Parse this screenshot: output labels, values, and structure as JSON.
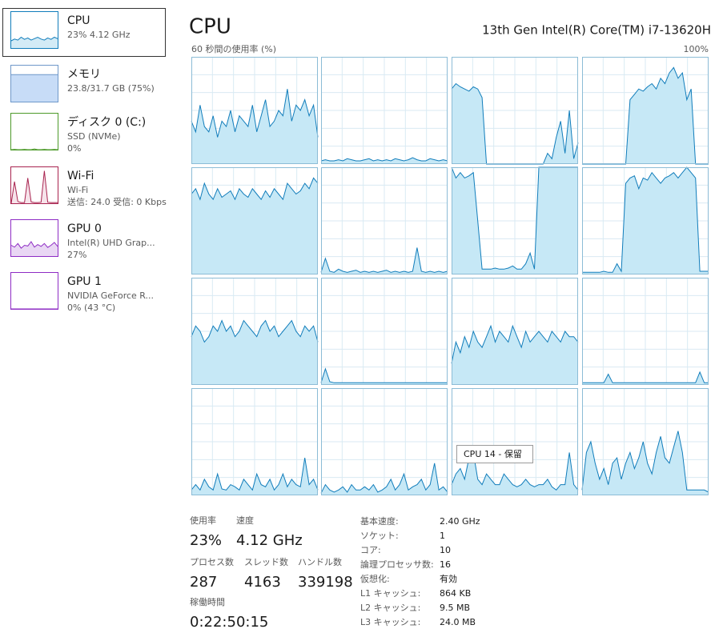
{
  "sidebar": [
    {
      "title": "CPU",
      "lines": [
        "23%  4.12 GHz"
      ],
      "color": "#117dbb",
      "fill": "#d3ebf6",
      "values": [
        20,
        25,
        22,
        30,
        24,
        28,
        22,
        26,
        30,
        25,
        22,
        28,
        24,
        30,
        26
      ]
    },
    {
      "title": "メモリ",
      "lines": [
        "23.8/31.7 GB (75%)"
      ],
      "color": "#6f98c9",
      "fill": "#c7dcf7",
      "values": [
        75,
        75,
        75,
        75,
        75,
        75,
        75,
        75,
        75,
        75,
        75,
        75,
        75,
        75,
        75
      ]
    },
    {
      "title": "ディスク 0 (C:)",
      "lines": [
        "SSD (NVMe)",
        "0%"
      ],
      "color": "#4d9a2a",
      "fill": "#eef6ea",
      "values": [
        0,
        1,
        0,
        0,
        1,
        0,
        0,
        2,
        0,
        0,
        1,
        0,
        0,
        1,
        0
      ]
    },
    {
      "title": "Wi-Fi",
      "lines": [
        "Wi-Fi",
        "送信: 24.0 受信: 0 Kbps"
      ],
      "color": "#a8234f",
      "fill": "#f6e3ea",
      "values": [
        0,
        60,
        5,
        2,
        2,
        70,
        4,
        2,
        2,
        3,
        90,
        3,
        2,
        2,
        2
      ]
    },
    {
      "title": "GPU 0",
      "lines": [
        "Intel(R) UHD Grap...",
        "27%"
      ],
      "color": "#8e2cc4",
      "fill": "#e9d7f4",
      "values": [
        30,
        25,
        35,
        22,
        30,
        28,
        40,
        25,
        32,
        27,
        35,
        24,
        30,
        38,
        27
      ]
    },
    {
      "title": "GPU 1",
      "lines": [
        "NVIDIA GeForce R...",
        "0% (43 °C)"
      ],
      "color": "#8e2cc4",
      "fill": "#e9d7f4",
      "values": [
        0,
        0,
        0,
        0,
        0,
        0,
        0,
        0,
        0,
        0,
        0,
        0,
        0,
        0,
        0
      ]
    }
  ],
  "header": {
    "title": "CPU",
    "model": "13th Gen Intel(R) Core(TM) i7-13620H",
    "graph_label": "60 秒間の使用率 (%)",
    "graph_max": "100%"
  },
  "cores": [
    {
      "values": [
        40,
        30,
        55,
        35,
        30,
        45,
        25,
        40,
        35,
        50,
        30,
        45,
        40,
        35,
        55,
        30,
        45,
        60,
        35,
        40,
        50,
        45,
        70,
        40,
        55,
        50,
        60,
        45,
        55,
        25
      ]
    },
    {
      "values": [
        3,
        4,
        3,
        3,
        4,
        3,
        5,
        4,
        3,
        3,
        4,
        5,
        3,
        4,
        3,
        4,
        3,
        5,
        4,
        3,
        4,
        6,
        4,
        3,
        3,
        5,
        4,
        3,
        4,
        3
      ]
    },
    {
      "values": [
        70,
        75,
        72,
        70,
        68,
        72,
        70,
        62,
        0,
        0,
        0,
        0,
        0,
        0,
        0,
        0,
        0,
        0,
        0,
        0,
        0,
        0,
        10,
        5,
        25,
        40,
        10,
        50,
        5,
        20
      ]
    },
    {
      "values": [
        0,
        0,
        0,
        0,
        0,
        0,
        0,
        0,
        0,
        0,
        0,
        60,
        65,
        70,
        68,
        72,
        75,
        70,
        80,
        75,
        85,
        90,
        80,
        85,
        60,
        70,
        0,
        0,
        0,
        0
      ]
    },
    {
      "values": [
        75,
        80,
        70,
        85,
        75,
        70,
        80,
        72,
        75,
        78,
        70,
        80,
        75,
        72,
        80,
        75,
        70,
        78,
        72,
        80,
        75,
        70,
        85,
        80,
        75,
        78,
        85,
        80,
        90,
        85
      ]
    },
    {
      "values": [
        2,
        15,
        3,
        2,
        5,
        3,
        2,
        3,
        4,
        2,
        3,
        2,
        3,
        2,
        3,
        4,
        2,
        3,
        2,
        3,
        2,
        3,
        25,
        3,
        2,
        3,
        2,
        3,
        2,
        3
      ]
    },
    {
      "values": [
        100,
        90,
        95,
        90,
        92,
        95,
        50,
        5,
        5,
        5,
        6,
        5,
        5,
        6,
        8,
        5,
        5,
        10,
        20,
        5,
        100,
        100,
        100,
        100,
        100,
        100,
        100,
        100,
        100,
        100
      ]
    },
    {
      "values": [
        2,
        2,
        2,
        2,
        2,
        3,
        2,
        2,
        10,
        3,
        85,
        90,
        92,
        80,
        90,
        88,
        95,
        90,
        85,
        90,
        92,
        95,
        90,
        95,
        100,
        95,
        90,
        3,
        3,
        3
      ]
    },
    {
      "values": [
        45,
        55,
        50,
        40,
        45,
        55,
        50,
        60,
        50,
        55,
        45,
        50,
        60,
        55,
        50,
        45,
        55,
        60,
        50,
        55,
        45,
        50,
        55,
        60,
        50,
        45,
        55,
        50,
        55,
        40
      ]
    },
    {
      "values": [
        2,
        15,
        3,
        2,
        2,
        2,
        2,
        2,
        2,
        2,
        2,
        2,
        2,
        2,
        2,
        2,
        2,
        2,
        2,
        2,
        2,
        2,
        2,
        2,
        2,
        2,
        2,
        2,
        2,
        2
      ]
    },
    {
      "values": [
        20,
        40,
        30,
        45,
        35,
        50,
        40,
        35,
        45,
        55,
        40,
        50,
        45,
        40,
        55,
        45,
        35,
        50,
        40,
        45,
        50,
        45,
        40,
        50,
        45,
        40,
        50,
        45,
        45,
        40
      ]
    },
    {
      "values": [
        2,
        2,
        2,
        2,
        2,
        2,
        10,
        2,
        2,
        2,
        2,
        2,
        2,
        2,
        2,
        2,
        2,
        2,
        2,
        2,
        2,
        2,
        2,
        2,
        2,
        2,
        2,
        12,
        2,
        2
      ]
    },
    {
      "values": [
        5,
        10,
        5,
        15,
        8,
        5,
        20,
        6,
        5,
        10,
        8,
        5,
        15,
        10,
        5,
        20,
        10,
        8,
        15,
        5,
        10,
        20,
        8,
        15,
        10,
        8,
        35,
        10,
        15,
        5
      ]
    },
    {
      "values": [
        2,
        10,
        5,
        3,
        5,
        8,
        3,
        10,
        5,
        5,
        8,
        5,
        10,
        3,
        5,
        8,
        15,
        5,
        10,
        20,
        5,
        8,
        10,
        15,
        5,
        10,
        30,
        5,
        8,
        3
      ]
    },
    {
      "values": [
        10,
        20,
        25,
        15,
        35,
        40,
        15,
        10,
        20,
        15,
        10,
        10,
        20,
        15,
        10,
        8,
        10,
        15,
        10,
        8,
        10,
        10,
        15,
        8,
        5,
        10,
        10,
        40,
        10,
        5
      ]
    },
    {
      "values": [
        5,
        40,
        50,
        30,
        15,
        25,
        10,
        30,
        35,
        15,
        30,
        40,
        25,
        35,
        50,
        30,
        20,
        40,
        55,
        35,
        30,
        45,
        60,
        40,
        5,
        5,
        5,
        5,
        5,
        3
      ]
    }
  ],
  "tooltip": "CPU 14 - 保留",
  "stats": [
    {
      "label": "使用率",
      "value": "23%"
    },
    {
      "label": "速度",
      "value": "4.12 GHz"
    },
    {
      "label": "プロセス数",
      "value": "287"
    },
    {
      "label": "スレッド数",
      "value": "4163"
    },
    {
      "label": "ハンドル数",
      "value": "339198"
    },
    {
      "label": "稼働時間",
      "value": "0:22:50:15"
    }
  ],
  "details": [
    {
      "label": "基本速度:",
      "value": "2.40 GHz"
    },
    {
      "label": "ソケット:",
      "value": "1"
    },
    {
      "label": "コア:",
      "value": "10"
    },
    {
      "label": "論理プロセッサ数:",
      "value": "16"
    },
    {
      "label": "仮想化:",
      "value": "有効"
    },
    {
      "label": "L1 キャッシュ:",
      "value": "864 KB"
    },
    {
      "label": "L2 キャッシュ:",
      "value": "9.5 MB"
    },
    {
      "label": "L3 キャッシュ:",
      "value": "24.0 MB"
    }
  ]
}
